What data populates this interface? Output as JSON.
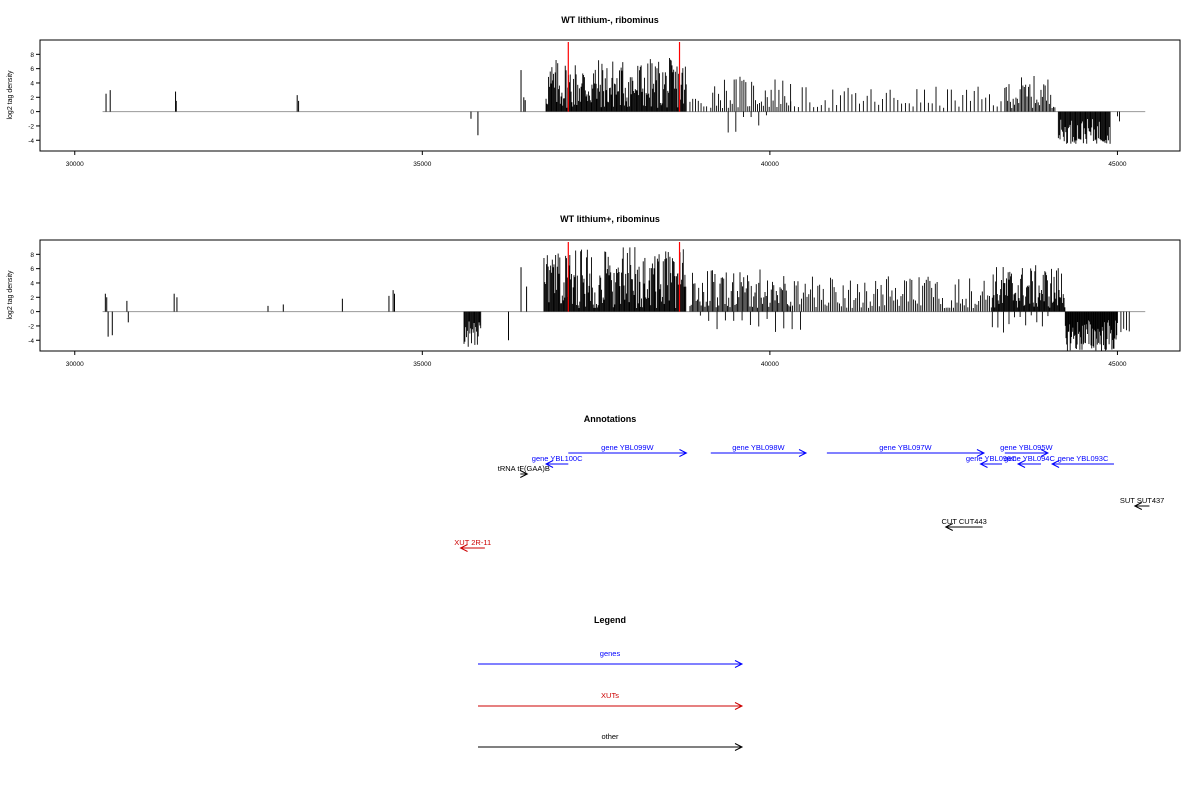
{
  "colors": {
    "bar": "#000000",
    "baseline": "#999999",
    "marker": "#ff0000",
    "frame": "#000000",
    "genes": "#0000ff",
    "xuts": "#cc0000",
    "other": "#000000"
  },
  "chart_data": [
    {
      "type": "bar",
      "title": "WT lithium-, ribominus",
      "ylabel": "log2 tag density",
      "xlim": [
        29500,
        45900
      ],
      "ylim": [
        -5.5,
        10
      ],
      "x_ticks": [
        30000,
        35000,
        40000,
        45000
      ],
      "y_ticks": [
        -4,
        -2,
        0,
        2,
        4,
        6,
        8
      ],
      "x_tick_labels": [
        "30000",
        "35000",
        "40000",
        "45000"
      ],
      "y_tick_labels": [
        "-4",
        "-2",
        "0",
        "2",
        "4",
        "6",
        "8"
      ],
      "markers": [
        37100,
        38700
      ],
      "baseline_range": [
        30400,
        45400
      ],
      "bars": [
        [
          30450,
          2.5
        ],
        [
          30510,
          3.0
        ],
        [
          31450,
          2.8
        ],
        [
          31460,
          1.5
        ],
        [
          33200,
          2.3
        ],
        [
          33220,
          1.5
        ],
        [
          35700,
          -1.0
        ],
        [
          35800,
          -3.3
        ],
        [
          36420,
          5.8
        ],
        [
          36460,
          2.0
        ],
        [
          36480,
          1.6
        ]
      ],
      "segments": [
        {
          "start": 36780,
          "end": 38800,
          "step": 12,
          "min": 0.5,
          "max": 7.5
        },
        {
          "start": 38850,
          "end": 39100,
          "step": 40,
          "min": 0.5,
          "max": 2.5
        },
        {
          "start": 39150,
          "end": 40300,
          "step": 28,
          "min": 0.5,
          "max": 5.0
        },
        {
          "start": 39400,
          "end": 40000,
          "step": 110,
          "min": -3.0,
          "max": -0.5
        },
        {
          "start": 40300,
          "end": 43400,
          "step": 55,
          "min": 0.5,
          "max": 3.5
        },
        {
          "start": 43400,
          "end": 44100,
          "step": 20,
          "min": 0.5,
          "max": 5.0
        },
        {
          "start": 44150,
          "end": 44900,
          "step": 12,
          "min": -4.5,
          "max": -1.0
        },
        {
          "start": 45000,
          "end": 45050,
          "step": 30,
          "min": -1.5,
          "max": -0.5
        }
      ]
    },
    {
      "type": "bar",
      "title": "WT lithium+, ribominus",
      "ylabel": "log2 tag density",
      "xlim": [
        29500,
        45900
      ],
      "ylim": [
        -5.5,
        10
      ],
      "x_ticks": [
        30000,
        35000,
        40000,
        45000
      ],
      "y_ticks": [
        -4,
        -2,
        0,
        2,
        4,
        6,
        8
      ],
      "x_tick_labels": [
        "30000",
        "35000",
        "40000",
        "45000"
      ],
      "y_tick_labels": [
        "-4",
        "-2",
        "0",
        "2",
        "4",
        "6",
        "8"
      ],
      "markers": [
        37100,
        38700
      ],
      "baseline_range": [
        30400,
        45400
      ],
      "bars": [
        [
          30440,
          2.5
        ],
        [
          30460,
          2.0
        ],
        [
          30480,
          -3.5
        ],
        [
          30540,
          -3.3
        ],
        [
          30750,
          1.5
        ],
        [
          30770,
          -1.5
        ],
        [
          31430,
          2.5
        ],
        [
          31470,
          2.0
        ],
        [
          32780,
          0.8
        ],
        [
          33000,
          1.0
        ],
        [
          33850,
          1.8
        ],
        [
          34520,
          2.2
        ],
        [
          34580,
          3.0
        ],
        [
          34600,
          2.5
        ],
        [
          36240,
          -4.0
        ],
        [
          36420,
          6.2
        ],
        [
          36500,
          3.5
        ]
      ],
      "segments": [
        {
          "start": 35600,
          "end": 35850,
          "step": 12,
          "min": -5.0,
          "max": -1.0
        },
        {
          "start": 36750,
          "end": 38800,
          "step": 12,
          "min": 0.5,
          "max": 9.0
        },
        {
          "start": 38850,
          "end": 40300,
          "step": 18,
          "min": 0.5,
          "max": 6.0
        },
        {
          "start": 39000,
          "end": 40500,
          "step": 120,
          "min": -3.0,
          "max": -0.5
        },
        {
          "start": 40300,
          "end": 43200,
          "step": 26,
          "min": 0.5,
          "max": 5.0
        },
        {
          "start": 43200,
          "end": 44250,
          "step": 12,
          "min": 0.5,
          "max": 6.5
        },
        {
          "start": 43200,
          "end": 44000,
          "step": 80,
          "min": -3.0,
          "max": -0.5
        },
        {
          "start": 44250,
          "end": 45000,
          "step": 10,
          "min": -5.5,
          "max": -1.0
        },
        {
          "start": 45050,
          "end": 45200,
          "step": 40,
          "min": -3.0,
          "max": -1.0
        }
      ]
    }
  ],
  "annotations": {
    "title": "Annotations",
    "features": [
      {
        "label": "gene YBL100C",
        "x1": 37100,
        "x2": 36780,
        "row": 1,
        "category": "genes"
      },
      {
        "label": "gene YBL099W",
        "x1": 37100,
        "x2": 38800,
        "row": 0,
        "category": "genes"
      },
      {
        "label": "gene YBL098W",
        "x1": 39150,
        "x2": 40520,
        "row": 0,
        "category": "genes"
      },
      {
        "label": "gene YBL097W",
        "x1": 40820,
        "x2": 43080,
        "row": 0,
        "category": "genes"
      },
      {
        "label": "gene YBL096C",
        "x1": 43340,
        "x2": 43030,
        "row": 1,
        "category": "genes"
      },
      {
        "label": "gene YBL095W",
        "x1": 43380,
        "x2": 44000,
        "row": 0,
        "category": "genes"
      },
      {
        "label": "gene YBL094C",
        "x1": 43900,
        "x2": 43570,
        "row": 1,
        "category": "genes"
      },
      {
        "label": "gene YBL093C",
        "x1": 44950,
        "x2": 44060,
        "row": 1,
        "category": "genes"
      },
      {
        "label": "tRNA tF(GAA)B",
        "x1": 36410,
        "x2": 36510,
        "row": 2,
        "category": "other"
      },
      {
        "label": "SUT SUT437",
        "x1": 45460,
        "x2": 45250,
        "row": 3,
        "category": "other"
      },
      {
        "label": "CUT CUT443",
        "x1": 43060,
        "x2": 42530,
        "row": 4,
        "category": "other"
      },
      {
        "label": "XUT 2R-11",
        "x1": 35900,
        "x2": 35550,
        "row": 5,
        "category": "xuts"
      }
    ]
  },
  "legend": {
    "title": "Legend",
    "items": [
      {
        "label": "genes",
        "category": "genes"
      },
      {
        "label": "XUTs",
        "category": "xuts"
      },
      {
        "label": "other",
        "category": "other"
      }
    ]
  }
}
